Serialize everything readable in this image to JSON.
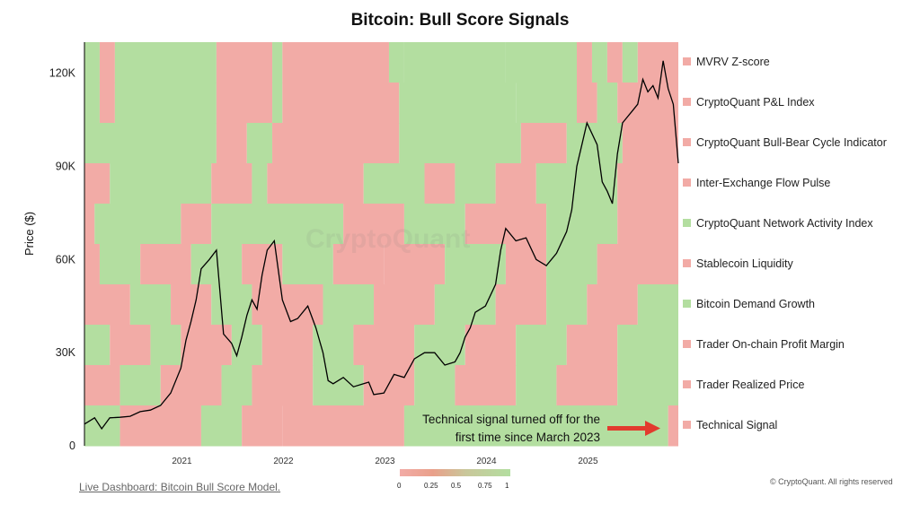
{
  "chart_data": {
    "type": "heatmap",
    "title": "Bitcoin: Bull Score Signals",
    "ylabel": "Price ($)",
    "ylim": [
      0,
      130000
    ],
    "x_range": [
      2020.05,
      2025.9
    ],
    "x_ticks": [
      "2021",
      "2022",
      "2023",
      "2024",
      "2025"
    ],
    "y_ticks": [
      "0",
      "30K",
      "60K",
      "90K",
      "120K"
    ],
    "colorbar": {
      "ticks": [
        "0",
        "0.25",
        "0.5",
        "0.75",
        "1"
      ],
      "low_color": "#f2aba6",
      "high_color": "#b3dea0"
    },
    "signals": [
      {
        "name": "MVRV Z-score",
        "segments": [
          [
            2020.05,
            2020.2,
            1
          ],
          [
            2020.2,
            2020.35,
            0
          ],
          [
            2020.35,
            2021.35,
            1
          ],
          [
            2021.35,
            2021.9,
            0
          ],
          [
            2021.9,
            2022.0,
            1
          ],
          [
            2022.0,
            2023.05,
            0
          ],
          [
            2023.05,
            2023.2,
            1
          ],
          [
            2023.2,
            2024.2,
            1
          ],
          [
            2024.2,
            2024.9,
            1
          ],
          [
            2024.9,
            2025.05,
            0
          ],
          [
            2025.05,
            2025.2,
            1
          ],
          [
            2025.2,
            2025.35,
            0
          ],
          [
            2025.35,
            2025.5,
            1
          ],
          [
            2025.5,
            2025.9,
            0
          ]
        ]
      },
      {
        "name": "CryptoQuant P&L Index",
        "segments": [
          [
            2020.05,
            2020.2,
            1
          ],
          [
            2020.2,
            2020.35,
            0
          ],
          [
            2020.35,
            2021.35,
            1
          ],
          [
            2021.35,
            2021.9,
            0
          ],
          [
            2021.9,
            2022.0,
            1
          ],
          [
            2022.0,
            2023.15,
            0
          ],
          [
            2023.15,
            2024.3,
            1
          ],
          [
            2024.3,
            2024.9,
            1
          ],
          [
            2024.9,
            2025.1,
            0
          ],
          [
            2025.1,
            2025.3,
            1
          ],
          [
            2025.3,
            2025.9,
            0
          ]
        ]
      },
      {
        "name": "CryptoQuant Bull-Bear Cycle Indicator",
        "segments": [
          [
            2020.05,
            2021.35,
            1
          ],
          [
            2021.35,
            2021.65,
            0
          ],
          [
            2021.65,
            2021.9,
            1
          ],
          [
            2021.9,
            2023.15,
            0
          ],
          [
            2023.15,
            2024.35,
            1
          ],
          [
            2024.35,
            2024.8,
            0
          ],
          [
            2024.8,
            2025.35,
            1
          ],
          [
            2025.35,
            2025.9,
            0
          ]
        ]
      },
      {
        "name": "Inter-Exchange Flow Pulse",
        "segments": [
          [
            2020.05,
            2020.3,
            0
          ],
          [
            2020.3,
            2021.3,
            1
          ],
          [
            2021.3,
            2021.7,
            0
          ],
          [
            2021.7,
            2021.85,
            1
          ],
          [
            2021.85,
            2022.8,
            0
          ],
          [
            2022.8,
            2023.4,
            1
          ],
          [
            2023.4,
            2023.7,
            0
          ],
          [
            2023.7,
            2024.1,
            1
          ],
          [
            2024.1,
            2024.5,
            0
          ],
          [
            2024.5,
            2025.3,
            1
          ],
          [
            2025.3,
            2025.9,
            0
          ]
        ]
      },
      {
        "name": "CryptoQuant Network Activity Index",
        "segments": [
          [
            2020.05,
            2020.15,
            0
          ],
          [
            2020.15,
            2021.0,
            1
          ],
          [
            2021.0,
            2021.3,
            0
          ],
          [
            2021.3,
            2022.6,
            1
          ],
          [
            2022.6,
            2023.2,
            0
          ],
          [
            2023.2,
            2023.8,
            1
          ],
          [
            2023.8,
            2024.6,
            0
          ],
          [
            2024.6,
            2025.3,
            1
          ],
          [
            2025.3,
            2025.9,
            0
          ]
        ]
      },
      {
        "name": "Stablecoin Liquidity",
        "segments": [
          [
            2020.05,
            2020.2,
            0
          ],
          [
            2020.2,
            2020.6,
            1
          ],
          [
            2020.6,
            2021.1,
            0
          ],
          [
            2021.1,
            2021.6,
            1
          ],
          [
            2021.6,
            2022.0,
            0
          ],
          [
            2022.0,
            2022.5,
            1
          ],
          [
            2022.5,
            2023.0,
            0
          ],
          [
            2023.0,
            2023.6,
            0
          ],
          [
            2023.6,
            2024.2,
            1
          ],
          [
            2024.2,
            2024.6,
            0
          ],
          [
            2024.6,
            2025.1,
            1
          ],
          [
            2025.1,
            2025.9,
            0
          ]
        ]
      },
      {
        "name": "Bitcoin Demand Growth",
        "segments": [
          [
            2020.05,
            2020.5,
            0
          ],
          [
            2020.5,
            2020.9,
            1
          ],
          [
            2020.9,
            2021.3,
            0
          ],
          [
            2021.3,
            2021.7,
            1
          ],
          [
            2021.7,
            2022.4,
            0
          ],
          [
            2022.4,
            2022.9,
            1
          ],
          [
            2022.9,
            2023.5,
            0
          ],
          [
            2023.5,
            2024.1,
            1
          ],
          [
            2024.1,
            2024.6,
            0
          ],
          [
            2024.6,
            2025.0,
            1
          ],
          [
            2025.0,
            2025.5,
            0
          ],
          [
            2025.5,
            2025.9,
            1
          ]
        ]
      },
      {
        "name": "Trader On-chain Profit Margin",
        "segments": [
          [
            2020.05,
            2020.3,
            1
          ],
          [
            2020.3,
            2020.7,
            0
          ],
          [
            2020.7,
            2021.0,
            1
          ],
          [
            2021.0,
            2021.5,
            0
          ],
          [
            2021.5,
            2021.8,
            1
          ],
          [
            2021.8,
            2022.3,
            0
          ],
          [
            2022.3,
            2022.7,
            1
          ],
          [
            2022.7,
            2023.3,
            0
          ],
          [
            2023.3,
            2023.8,
            1
          ],
          [
            2023.8,
            2024.3,
            0
          ],
          [
            2024.3,
            2024.8,
            1
          ],
          [
            2024.8,
            2025.3,
            0
          ],
          [
            2025.3,
            2025.9,
            1
          ]
        ]
      },
      {
        "name": "Trader Realized Price",
        "segments": [
          [
            2020.05,
            2020.4,
            0
          ],
          [
            2020.4,
            2020.8,
            1
          ],
          [
            2020.8,
            2021.4,
            0
          ],
          [
            2021.4,
            2021.7,
            1
          ],
          [
            2021.7,
            2022.3,
            0
          ],
          [
            2022.3,
            2022.8,
            1
          ],
          [
            2022.8,
            2023.3,
            0
          ],
          [
            2023.3,
            2023.7,
            1
          ],
          [
            2023.7,
            2024.3,
            0
          ],
          [
            2024.3,
            2024.7,
            1
          ],
          [
            2024.7,
            2025.3,
            0
          ],
          [
            2025.3,
            2025.9,
            1
          ]
        ]
      },
      {
        "name": "Technical Signal",
        "segments": [
          [
            2020.05,
            2020.4,
            1
          ],
          [
            2020.4,
            2021.2,
            0
          ],
          [
            2021.2,
            2021.6,
            1
          ],
          [
            2021.6,
            2022.0,
            0
          ],
          [
            2022.0,
            2023.2,
            0
          ],
          [
            2023.2,
            2025.8,
            1
          ],
          [
            2025.8,
            2025.9,
            0
          ]
        ]
      }
    ],
    "price_series": {
      "x": [
        2020.05,
        2020.15,
        2020.22,
        2020.3,
        2020.4,
        2020.5,
        2020.6,
        2020.7,
        2020.8,
        2020.9,
        2021.0,
        2021.05,
        2021.1,
        2021.15,
        2021.2,
        2021.28,
        2021.35,
        2021.42,
        2021.5,
        2021.55,
        2021.6,
        2021.65,
        2021.7,
        2021.75,
        2021.8,
        2021.85,
        2021.92,
        2022.0,
        2022.08,
        2022.15,
        2022.25,
        2022.33,
        2022.4,
        2022.45,
        2022.5,
        2022.6,
        2022.7,
        2022.8,
        2022.85,
        2022.9,
        2023.0,
        2023.1,
        2023.2,
        2023.3,
        2023.4,
        2023.5,
        2023.6,
        2023.7,
        2023.75,
        2023.8,
        2023.85,
        2023.9,
        2024.0,
        2024.1,
        2024.15,
        2024.2,
        2024.3,
        2024.4,
        2024.5,
        2024.6,
        2024.7,
        2024.8,
        2024.85,
        2024.9,
        2024.95,
        2025.0,
        2025.1,
        2025.15,
        2025.2,
        2025.25,
        2025.3,
        2025.35,
        2025.4,
        2025.45,
        2025.5,
        2025.55,
        2025.6,
        2025.65,
        2025.7,
        2025.75,
        2025.8,
        2025.85,
        2025.9
      ],
      "y": [
        7000,
        9000,
        5500,
        9000,
        9200,
        9500,
        11000,
        11500,
        13000,
        17000,
        25000,
        34000,
        40000,
        47000,
        57000,
        60000,
        63000,
        36000,
        33000,
        29000,
        35000,
        42000,
        47000,
        44000,
        55000,
        63000,
        66000,
        47000,
        40000,
        41000,
        45000,
        38000,
        30000,
        21000,
        20000,
        22000,
        19000,
        20000,
        20500,
        16500,
        17000,
        23000,
        22000,
        28000,
        30000,
        30000,
        26000,
        27000,
        30000,
        35000,
        38000,
        43000,
        45000,
        52000,
        63000,
        70000,
        66000,
        67000,
        60000,
        58000,
        62000,
        69000,
        76000,
        90000,
        97000,
        104000,
        97000,
        85000,
        82000,
        78000,
        94000,
        104000,
        106000,
        108000,
        110000,
        118000,
        114000,
        116000,
        112000,
        124000,
        115000,
        110000,
        91000
      ]
    },
    "annotation": {
      "text_line1": "Technical signal turned off for the",
      "text_line2": "first time since March 2023"
    }
  },
  "footer": {
    "link": "Live Dashboard: Bitcoin Bull Score Model.",
    "copyright": "© CryptoQuant. All rights reserved",
    "watermark": "CryptoQuant"
  },
  "colors": {
    "bull": "#b3dea0",
    "bear": "#f2aba6",
    "line": "#000000",
    "arrow": "#e23b2e"
  }
}
